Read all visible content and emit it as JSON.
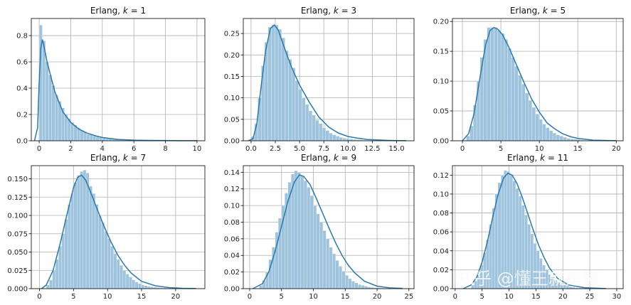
{
  "watermark": "知乎 @懂王就是懂",
  "colors": {
    "hist_fill": "#9ec3dd",
    "hist_edge": "#ffffff",
    "kde_line": "#2a79ad",
    "grid": "#b0b0b0",
    "spine": "#000000"
  },
  "chart_data": [
    {
      "type": "histogram+kde",
      "title_prefix": "Erlang, ",
      "title_var": "k",
      "title_value": " = 1",
      "k": 1,
      "xlim": [
        -0.5,
        10.5
      ],
      "ylim": [
        0,
        0.93
      ],
      "xticks": [
        0,
        2,
        4,
        6,
        8,
        10
      ],
      "xticklabels": [
        "0",
        "2",
        "4",
        "6",
        "8",
        "10"
      ],
      "yticks": [
        0,
        0.2,
        0.4,
        0.6,
        0.8
      ],
      "yticklabels": [
        "0.0",
        "0.2",
        "0.4",
        "0.6",
        "0.8"
      ],
      "bin_edges": [
        0,
        0.2,
        0.4,
        0.6,
        0.8,
        1.0,
        1.2,
        1.4,
        1.6,
        1.8,
        2.0,
        2.2,
        2.4,
        2.6,
        2.8,
        3.0,
        3.2,
        3.4,
        3.6,
        3.8,
        4.0,
        4.2,
        4.4,
        4.6,
        4.8,
        5.0,
        5.2,
        5.4,
        5.6,
        5.8,
        6.0,
        6.2,
        6.4,
        6.6,
        6.8,
        7.0,
        7.2,
        7.4,
        7.6,
        7.8,
        8.0,
        8.2,
        8.4,
        8.6,
        8.8,
        9.0,
        9.2,
        9.4,
        9.6,
        9.8,
        10.0
      ],
      "densities": [
        0.88,
        0.76,
        0.6,
        0.5,
        0.42,
        0.35,
        0.3,
        0.25,
        0.2,
        0.17,
        0.14,
        0.12,
        0.1,
        0.08,
        0.07,
        0.05,
        0.045,
        0.036,
        0.03,
        0.025,
        0.02,
        0.017,
        0.014,
        0.011,
        0.009,
        0.008,
        0.006,
        0.005,
        0.004,
        0.004,
        0.003,
        0.003,
        0.002,
        0.002,
        0.002,
        0.001,
        0.001,
        0.001,
        0.001,
        0.001,
        0.001,
        0.001,
        0.0005,
        0.0005,
        0.0005,
        0.0005,
        0.0005,
        0.0005,
        0.0005,
        0.0005
      ],
      "kde_x": [
        -0.3,
        -0.1,
        0.0,
        0.1,
        0.2,
        0.3,
        0.5,
        0.8,
        1.0,
        1.5,
        2.0,
        2.5,
        3.0,
        3.5,
        4.0,
        5.0,
        6.0,
        7.0,
        8.0,
        9.0,
        10.0
      ],
      "kde_y": [
        0.0,
        0.1,
        0.45,
        0.7,
        0.77,
        0.72,
        0.6,
        0.46,
        0.37,
        0.22,
        0.14,
        0.09,
        0.06,
        0.04,
        0.025,
        0.01,
        0.005,
        0.003,
        0.002,
        0.001,
        0.0005
      ]
    },
    {
      "type": "histogram+kde",
      "title_prefix": "Erlang, ",
      "title_var": "k",
      "title_value": " = 3",
      "k": 3,
      "xlim": [
        -0.8,
        16.8
      ],
      "ylim": [
        0,
        0.285
      ],
      "xticks": [
        0,
        2.5,
        5,
        7.5,
        10,
        12.5,
        15
      ],
      "xticklabels": [
        "0.0",
        "2.5",
        "5.0",
        "7.5",
        "10.0",
        "12.5",
        "15.0"
      ],
      "yticks": [
        0,
        0.05,
        0.1,
        0.15,
        0.2,
        0.25
      ],
      "yticklabels": [
        "0.00",
        "0.05",
        "0.10",
        "0.15",
        "0.20",
        "0.25"
      ],
      "bin_edges": [
        0,
        0.35,
        0.7,
        1.05,
        1.4,
        1.75,
        2.1,
        2.45,
        2.8,
        3.15,
        3.5,
        3.85,
        4.2,
        4.55,
        4.9,
        5.25,
        5.6,
        5.95,
        6.3,
        6.65,
        7.0,
        7.35,
        7.7,
        8.05,
        8.4,
        8.75,
        9.1,
        9.45,
        9.8,
        10.15,
        10.5,
        10.85,
        11.2,
        11.55,
        11.9,
        12.25,
        12.6,
        12.95,
        13.3,
        13.65,
        14.0,
        14.35,
        14.7,
        15.05,
        15.4,
        15.75,
        16.1
      ],
      "densities": [
        0.01,
        0.04,
        0.1,
        0.175,
        0.23,
        0.265,
        0.27,
        0.27,
        0.26,
        0.24,
        0.21,
        0.19,
        0.17,
        0.14,
        0.12,
        0.1,
        0.085,
        0.07,
        0.06,
        0.048,
        0.04,
        0.03,
        0.024,
        0.018,
        0.014,
        0.011,
        0.008,
        0.006,
        0.005,
        0.004,
        0.003,
        0.0025,
        0.002,
        0.0015,
        0.001,
        0.001,
        0.001,
        0.0008,
        0.0006,
        0.0005,
        0.0005,
        0.0004,
        0.0003,
        0.0003,
        0.0002,
        0.0002
      ],
      "kde_x": [
        -0.3,
        0.2,
        0.6,
        1.0,
        1.5,
        2.0,
        2.4,
        2.8,
        3.2,
        3.7,
        4.2,
        5.0,
        6.0,
        7.0,
        8.0,
        9.0,
        10.0,
        11.0,
        12.0,
        13.0,
        14.0,
        15.0,
        16.0
      ],
      "kde_y": [
        0.0,
        0.005,
        0.04,
        0.12,
        0.21,
        0.262,
        0.27,
        0.258,
        0.232,
        0.2,
        0.17,
        0.13,
        0.09,
        0.055,
        0.032,
        0.018,
        0.01,
        0.006,
        0.003,
        0.002,
        0.001,
        0.0005,
        0.0002
      ]
    },
    {
      "type": "histogram+kde",
      "title_prefix": "Erlang, ",
      "title_var": "k",
      "title_value": " = 5",
      "k": 5,
      "xlim": [
        -1.3,
        20.9
      ],
      "ylim": [
        0,
        0.205
      ],
      "xticks": [
        0,
        5,
        10,
        15,
        20
      ],
      "xticklabels": [
        "0",
        "5",
        "10",
        "15",
        "20"
      ],
      "yticks": [
        0,
        0.05,
        0.1,
        0.15,
        0.2
      ],
      "yticklabels": [
        "0.00",
        "0.05",
        "0.10",
        "0.15",
        "0.20"
      ],
      "bin_edges": [
        0.5,
        0.95,
        1.4,
        1.85,
        2.3,
        2.75,
        3.2,
        3.65,
        4.1,
        4.55,
        5.0,
        5.45,
        5.9,
        6.35,
        6.8,
        7.25,
        7.7,
        8.15,
        8.6,
        9.05,
        9.5,
        9.95,
        10.4,
        10.85,
        11.3,
        11.75,
        12.2,
        12.65,
        13.1,
        13.55,
        14.0,
        14.45,
        14.9,
        15.35,
        15.8,
        16.25,
        16.7,
        17.15,
        17.6,
        18.05,
        18.5,
        18.95,
        19.4,
        19.85
      ],
      "densities": [
        0.008,
        0.025,
        0.06,
        0.1,
        0.14,
        0.17,
        0.19,
        0.19,
        0.19,
        0.185,
        0.18,
        0.17,
        0.155,
        0.14,
        0.125,
        0.11,
        0.095,
        0.08,
        0.068,
        0.056,
        0.045,
        0.036,
        0.028,
        0.022,
        0.017,
        0.013,
        0.01,
        0.008,
        0.006,
        0.004,
        0.003,
        0.0025,
        0.002,
        0.0015,
        0.001,
        0.001,
        0.0008,
        0.0006,
        0.0005,
        0.0004,
        0.0003,
        0.0002,
        0.0002
      ],
      "kde_x": [
        0.0,
        0.8,
        1.5,
        2.2,
        3.0,
        3.6,
        4.1,
        4.6,
        5.2,
        6.0,
        7.0,
        8.0,
        9.0,
        10.0,
        11.0,
        12.0,
        13.0,
        14.0,
        15.0,
        17.0,
        20.0
      ],
      "kde_y": [
        0.0,
        0.012,
        0.045,
        0.1,
        0.16,
        0.185,
        0.19,
        0.187,
        0.178,
        0.158,
        0.128,
        0.098,
        0.07,
        0.048,
        0.03,
        0.02,
        0.012,
        0.007,
        0.004,
        0.001,
        0.0002
      ]
    },
    {
      "type": "histogram+kde",
      "title_prefix": "Erlang, ",
      "title_var": "k",
      "title_value": " = 7",
      "k": 7,
      "xlim": [
        -1.2,
        24.3
      ],
      "ylim": [
        0,
        0.168
      ],
      "xticks": [
        0,
        5,
        10,
        15,
        20
      ],
      "xticklabels": [
        "0",
        "5",
        "10",
        "15",
        "20"
      ],
      "yticks": [
        0,
        0.025,
        0.05,
        0.075,
        0.1,
        0.125,
        0.15
      ],
      "yticklabels": [
        "0.000",
        "0.025",
        "0.050",
        "0.075",
        "0.100",
        "0.125",
        "0.150"
      ],
      "bin_edges": [
        1.0,
        1.45,
        1.9,
        2.35,
        2.8,
        3.25,
        3.7,
        4.15,
        4.6,
        5.05,
        5.5,
        5.95,
        6.4,
        6.85,
        7.3,
        7.75,
        8.2,
        8.65,
        9.1,
        9.55,
        10.0,
        10.45,
        10.9,
        11.35,
        11.8,
        12.25,
        12.7,
        13.15,
        13.6,
        14.05,
        14.5,
        14.95,
        15.4,
        15.85,
        16.3,
        16.75,
        17.2,
        17.65,
        18.1,
        18.55,
        19.0,
        19.45,
        19.9,
        20.35,
        20.8,
        21.25,
        21.7,
        22.15,
        22.6
      ],
      "densities": [
        0.005,
        0.012,
        0.025,
        0.04,
        0.058,
        0.075,
        0.095,
        0.115,
        0.13,
        0.145,
        0.155,
        0.16,
        0.162,
        0.158,
        0.14,
        0.13,
        0.115,
        0.1,
        0.09,
        0.078,
        0.068,
        0.058,
        0.048,
        0.04,
        0.032,
        0.025,
        0.02,
        0.016,
        0.012,
        0.009,
        0.007,
        0.005,
        0.004,
        0.003,
        0.0025,
        0.002,
        0.0015,
        0.001,
        0.001,
        0.0008,
        0.0006,
        0.0005,
        0.0004,
        0.0003,
        0.0002,
        0.0002,
        0.0001,
        0.0001
      ],
      "kde_x": [
        0.3,
        1.0,
        2.0,
        3.0,
        4.0,
        5.0,
        5.6,
        6.2,
        6.8,
        7.5,
        8.5,
        9.5,
        10.5,
        11.5,
        12.5,
        13.5,
        15.0,
        17.0,
        19.0,
        21.0,
        23.0
      ],
      "kde_y": [
        0.0,
        0.005,
        0.025,
        0.06,
        0.1,
        0.138,
        0.152,
        0.155,
        0.148,
        0.132,
        0.108,
        0.085,
        0.064,
        0.046,
        0.032,
        0.021,
        0.01,
        0.004,
        0.0015,
        0.0005,
        0.0002
      ]
    },
    {
      "type": "histogram+kde",
      "title_prefix": "Erlang, ",
      "title_var": "k",
      "title_value": " = 9",
      "k": 9,
      "xlim": [
        -1.0,
        25.8
      ],
      "ylim": [
        0,
        0.148
      ],
      "xticks": [
        0,
        5,
        10,
        15,
        20,
        25
      ],
      "xticklabels": [
        "0",
        "5",
        "10",
        "15",
        "20",
        "25"
      ],
      "yticks": [
        0,
        0.02,
        0.04,
        0.06,
        0.08,
        0.1,
        0.12,
        0.14
      ],
      "yticklabels": [
        "0.00",
        "0.02",
        "0.04",
        "0.06",
        "0.08",
        "0.10",
        "0.12",
        "0.14"
      ],
      "bin_edges": [
        1.5,
        2.0,
        2.5,
        3.0,
        3.5,
        4.0,
        4.5,
        5.0,
        5.5,
        6.0,
        6.5,
        7.0,
        7.5,
        8.0,
        8.5,
        9.0,
        9.5,
        10.0,
        10.5,
        11.0,
        11.5,
        12.0,
        12.5,
        13.0,
        13.5,
        14.0,
        14.5,
        15.0,
        15.5,
        16.0,
        16.5,
        17.0,
        17.5,
        18.0,
        18.5,
        19.0,
        19.5,
        20.0,
        20.5,
        21.0,
        21.5,
        22.0,
        22.5,
        23.0,
        23.5,
        24.0
      ],
      "densities": [
        0.004,
        0.01,
        0.02,
        0.035,
        0.05,
        0.068,
        0.085,
        0.1,
        0.115,
        0.128,
        0.138,
        0.142,
        0.14,
        0.136,
        0.13,
        0.122,
        0.112,
        0.1,
        0.09,
        0.08,
        0.07,
        0.06,
        0.05,
        0.042,
        0.034,
        0.027,
        0.021,
        0.016,
        0.012,
        0.009,
        0.007,
        0.005,
        0.004,
        0.003,
        0.002,
        0.0015,
        0.001,
        0.001,
        0.0008,
        0.0006,
        0.0005,
        0.0004,
        0.0003,
        0.0002,
        0.0002
      ],
      "kde_x": [
        0.5,
        2.0,
        3.0,
        4.0,
        5.0,
        6.0,
        7.0,
        7.8,
        8.5,
        9.5,
        10.5,
        11.5,
        12.5,
        13.5,
        14.5,
        15.5,
        16.5,
        18.0,
        20.0,
        22.0,
        24.0
      ],
      "kde_y": [
        0.0,
        0.006,
        0.02,
        0.045,
        0.075,
        0.105,
        0.128,
        0.137,
        0.135,
        0.125,
        0.108,
        0.09,
        0.072,
        0.055,
        0.04,
        0.028,
        0.019,
        0.009,
        0.003,
        0.001,
        0.0003
      ]
    },
    {
      "type": "histogram+kde",
      "title_prefix": "Erlang, ",
      "title_var": "k",
      "title_value": " = 11",
      "k": 11,
      "xlim": [
        -0.5,
        31.2
      ],
      "ylim": [
        0,
        0.13
      ],
      "xticks": [
        0,
        5,
        10,
        15,
        20,
        25,
        30
      ],
      "xticklabels": [
        "0",
        "5",
        "10",
        "15",
        "20",
        "25",
        "30"
      ],
      "yticks": [
        0,
        0.02,
        0.04,
        0.06,
        0.08,
        0.1,
        0.12
      ],
      "yticklabels": [
        "0.00",
        "0.02",
        "0.04",
        "0.06",
        "0.08",
        "0.10",
        "0.12"
      ],
      "bin_edges": [
        3.0,
        3.55,
        4.1,
        4.65,
        5.2,
        5.75,
        6.3,
        6.85,
        7.4,
        7.95,
        8.5,
        9.05,
        9.6,
        10.15,
        10.7,
        11.25,
        11.8,
        12.35,
        12.9,
        13.45,
        14.0,
        14.55,
        15.1,
        15.65,
        16.2,
        16.75,
        17.3,
        17.85,
        18.4,
        18.95,
        19.5,
        20.05,
        20.6,
        21.15,
        21.7,
        22.25,
        22.8,
        23.35,
        23.9,
        24.45,
        25.0,
        25.55,
        26.1,
        26.65,
        27.2,
        27.75,
        28.3
      ],
      "densities": [
        0.004,
        0.008,
        0.015,
        0.025,
        0.038,
        0.052,
        0.068,
        0.085,
        0.1,
        0.112,
        0.12,
        0.125,
        0.124,
        0.12,
        0.114,
        0.106,
        0.098,
        0.088,
        0.078,
        0.068,
        0.058,
        0.048,
        0.04,
        0.032,
        0.025,
        0.02,
        0.015,
        0.012,
        0.009,
        0.007,
        0.005,
        0.004,
        0.003,
        0.002,
        0.0015,
        0.001,
        0.001,
        0.0008,
        0.0006,
        0.0005,
        0.0004,
        0.0003,
        0.0002,
        0.0002,
        0.0001,
        0.0001
      ],
      "kde_x": [
        1.5,
        3.0,
        4.0,
        5.0,
        6.0,
        7.0,
        8.0,
        9.0,
        9.8,
        10.6,
        11.5,
        12.5,
        13.5,
        14.5,
        15.5,
        16.5,
        17.5,
        19.0,
        21.0,
        24.0,
        28.0
      ],
      "kde_y": [
        0.0,
        0.004,
        0.012,
        0.028,
        0.05,
        0.076,
        0.1,
        0.117,
        0.122,
        0.12,
        0.111,
        0.096,
        0.079,
        0.062,
        0.046,
        0.033,
        0.022,
        0.011,
        0.004,
        0.001,
        0.0001
      ]
    }
  ]
}
